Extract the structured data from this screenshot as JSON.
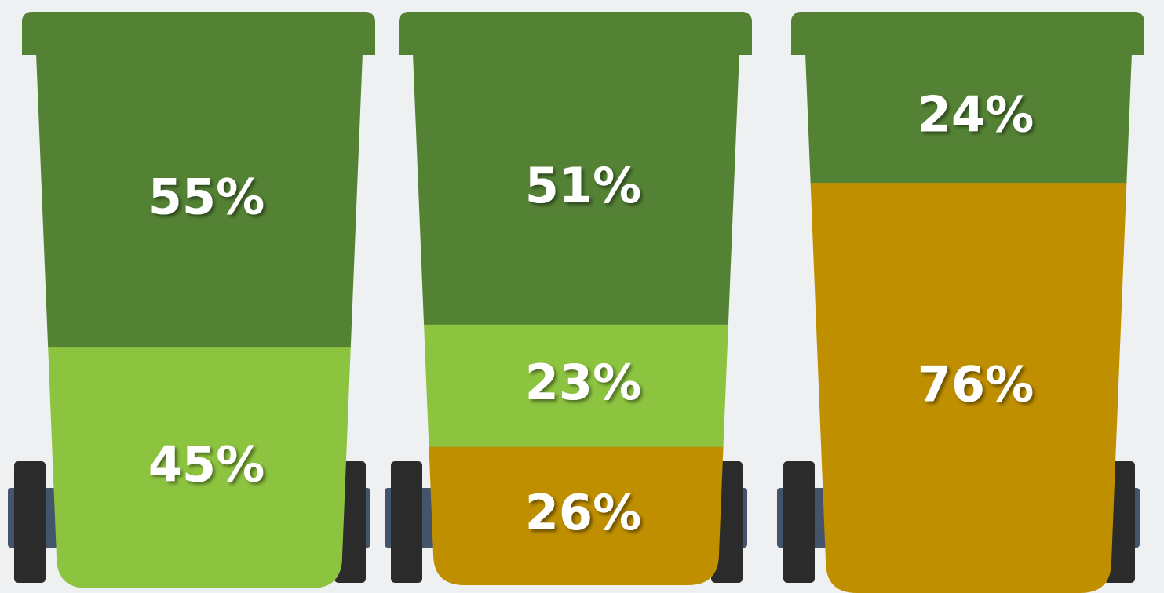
{
  "chart_data": [
    {
      "type": "bin",
      "values": [
        55,
        45
      ],
      "value_labels": [
        "55%",
        "45%"
      ],
      "colors": [
        "#548235",
        "#8cc43f"
      ]
    },
    {
      "type": "bin",
      "values": [
        51,
        23,
        26
      ],
      "value_labels": [
        "51%",
        "23%",
        "26%"
      ],
      "colors": [
        "#548235",
        "#8cc43f",
        "#bf8f00"
      ]
    },
    {
      "type": "bin",
      "values": [
        24,
        76
      ],
      "value_labels": [
        "24%",
        "76%"
      ],
      "colors": [
        "#548235",
        "#bf8f00"
      ]
    }
  ]
}
